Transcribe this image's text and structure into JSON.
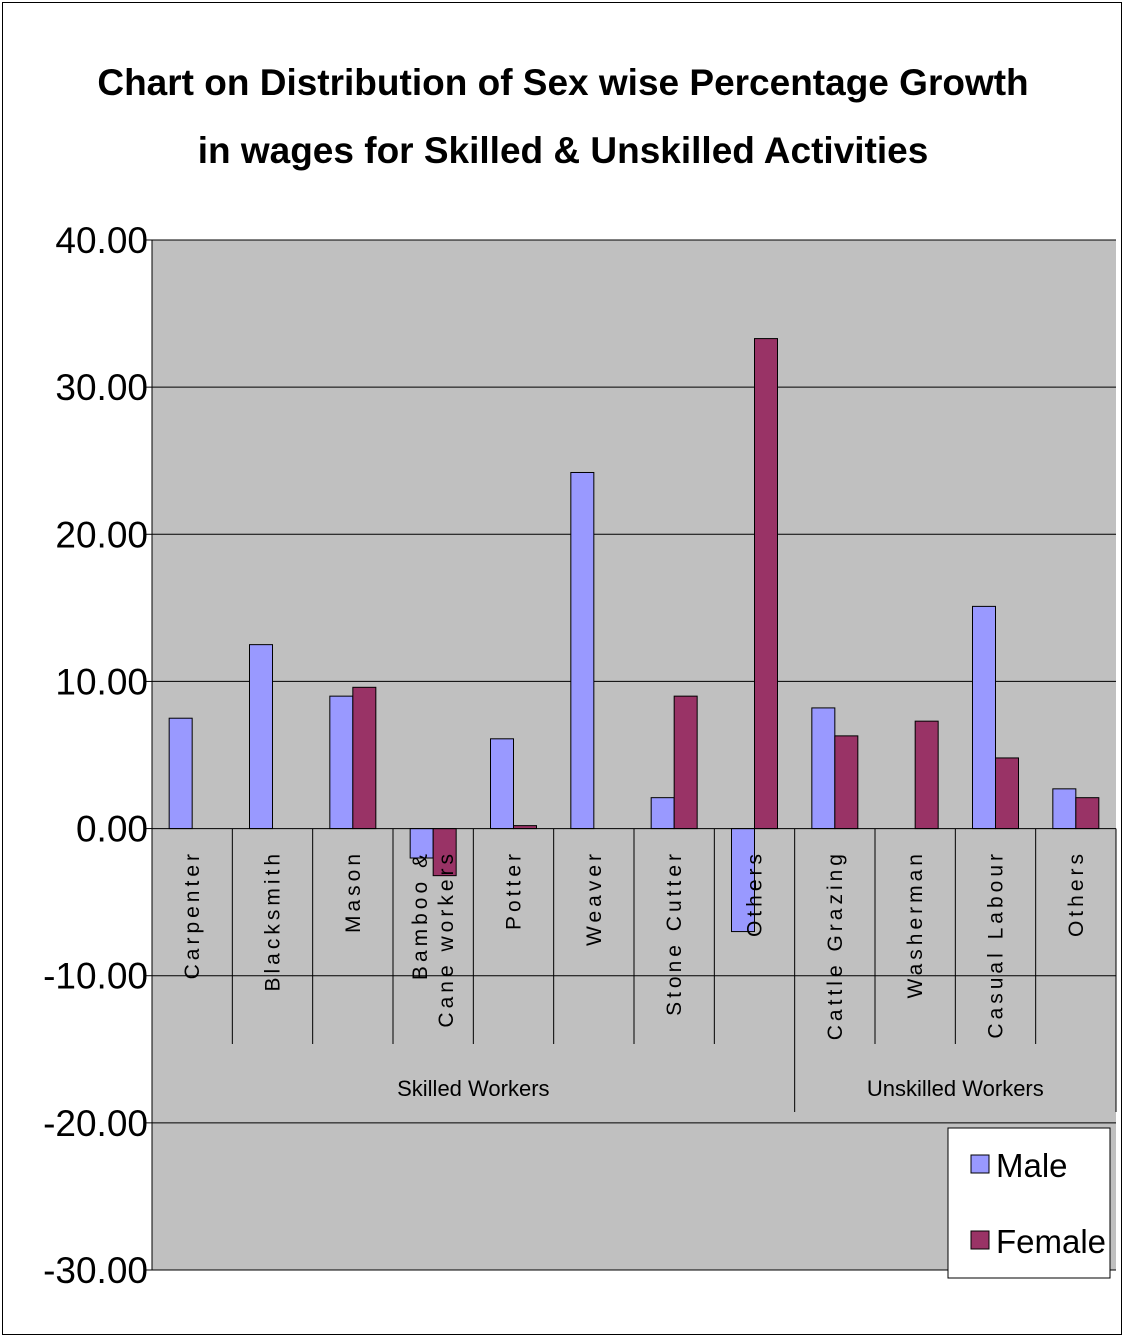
{
  "chart_data": {
    "type": "bar",
    "title": "Chart on Distribution of Sex wise Percentage Growth",
    "subtitle": "in wages for Skilled & Unskilled Activities",
    "xlabel": "",
    "ylabel": "",
    "ylim": [
      -30,
      40
    ],
    "yticks": [
      "40.00",
      "30.00",
      "20.00",
      "10.00",
      "0.00",
      "-10.00",
      "-20.00",
      "-30.00"
    ],
    "grid": true,
    "legend_position": "bottom-right",
    "plot_background": "#C0C0C0",
    "groups": [
      {
        "label": "Skilled Workers",
        "start": 0,
        "end": 7
      },
      {
        "label": "Unskilled Workers",
        "start": 8,
        "end": 11
      }
    ],
    "categories": [
      [
        "Carpenter"
      ],
      [
        "Blacksmith"
      ],
      [
        "Mason"
      ],
      [
        "Bamboo &",
        "Cane workers"
      ],
      [
        "Potter"
      ],
      [
        "Weaver"
      ],
      [
        "Stone Cutter"
      ],
      [
        "Others"
      ],
      [
        "Cattle Grazing"
      ],
      [
        "Washerman"
      ],
      [
        "Casual Labour"
      ],
      [
        "Others"
      ]
    ],
    "series": [
      {
        "name": "Male",
        "color": "#9999FF",
        "values": [
          7.5,
          12.5,
          9.0,
          -2.0,
          6.1,
          24.2,
          2.1,
          -7.0,
          8.2,
          0,
          15.1,
          2.7
        ]
      },
      {
        "name": "Female",
        "color": "#993366",
        "values": [
          0,
          0,
          9.6,
          -3.2,
          0.2,
          0,
          9.0,
          33.3,
          6.3,
          7.3,
          4.8,
          2.1
        ]
      }
    ]
  }
}
